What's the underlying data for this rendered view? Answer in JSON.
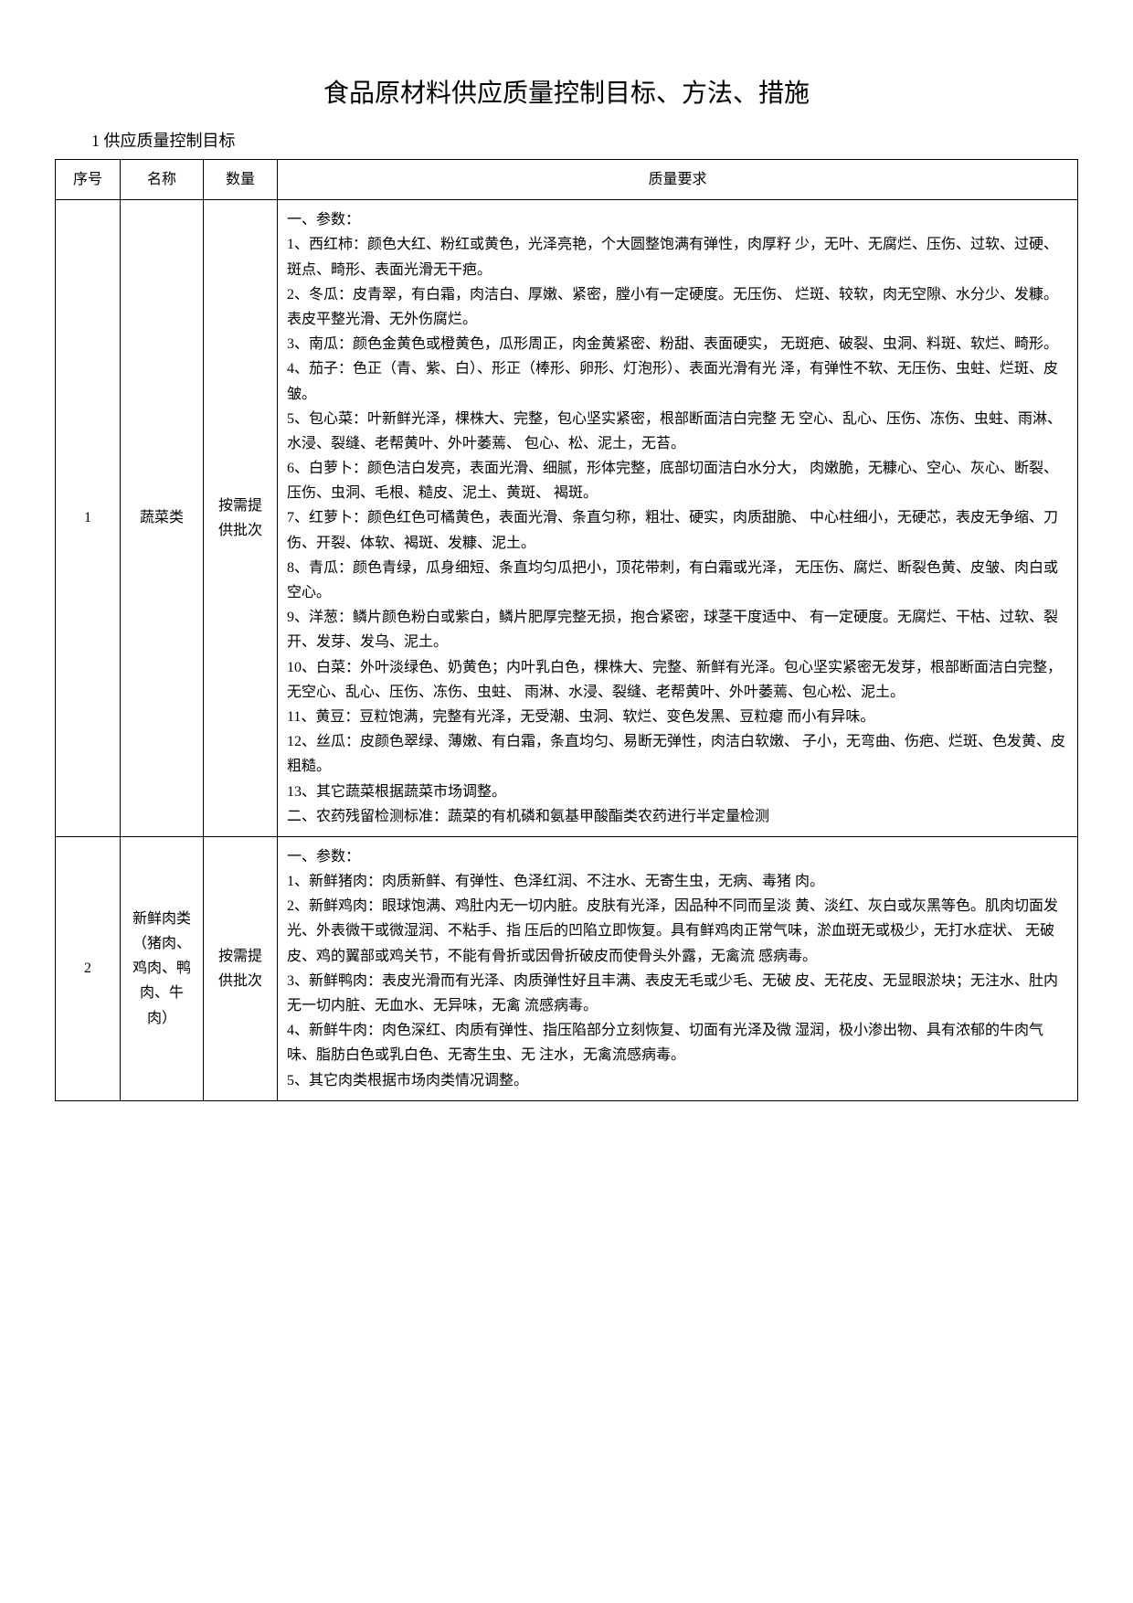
{
  "title": "食品原材料供应质量控制目标、方法、措施",
  "section1_heading": "1 供应质量控制目标",
  "columns": {
    "seq": "序号",
    "name": "名称",
    "qty": "数量",
    "req": "质量要求"
  },
  "rows": [
    {
      "seq": "1",
      "name": "蔬菜类",
      "qty": "按需提供批次",
      "req_lines": [
        "一、参数：",
        "1、西红柿：颜色大红、粉红或黄色，光泽亮艳，个大圆整饱满有弹性，肉厚籽 少，无叶、无腐烂、压伤、过软、过硬、斑点、畸形、表面光滑无干疤。",
        "2、冬瓜：皮青翠，有白霜，肉洁白、厚嫩、紧密，膛小有一定硬度。无压伤、 烂斑、较软，肉无空隙、水分少、发糠。表皮平整光滑、无外伤腐烂。",
        "3、南瓜：颜色金黄色或橙黄色，瓜形周正，肉金黄紧密、粉甜、表面硬实， 无斑疤、破裂、虫洞、料斑、软烂、畸形。",
        "4、茄子：色正（青、紫、白）、形正（棒形、卵形、灯泡形）、表面光滑有光 泽，有弹性不软、无压伤、虫蛀、烂斑、皮皱。",
        "5、包心菜：叶新鲜光泽，棵株大、完整，包心坚实紧密，根部断面洁白完整 无 空心、乱心、压伤、冻伤、虫蛀、雨淋、水浸、裂缝、老帮黄叶、外叶萎蔫、 包心、松、泥土，无苔。",
        "6、白萝卜：颜色洁白发亮，表面光滑、细腻，形体完整，底部切面洁白水分大， 肉嫩脆，无糠心、空心、灰心、断裂、压伤、虫洞、毛根、糙皮、泥土、黄斑、 褐斑。",
        "7、红萝卜：颜色红色可橘黄色，表面光滑、条直匀称，粗壮、硬实，肉质甜脆、 中心柱细小，无硬芯，表皮无争缩、刀伤、开裂、体软、褐斑、发糠、泥土。",
        "8、青瓜：颜色青绿，瓜身细短、条直均匀瓜把小，顶花带刺，有白霜或光泽， 无压伤、腐烂、断裂色黄、皮皱、肉白或空心。",
        "9、洋葱：鳞片颜色粉白或紫白，鳞片肥厚完整无损，抱合紧密，球茎干度适中、 有一定硬度。无腐烂、干枯、过软、裂开、发芽、发乌、泥土。",
        "10、白菜：外叶淡绿色、奶黄色；内叶乳白色，棵株大、完整、新鲜有光泽。包心坚实紧密无发芽，根部断面洁白完整，无空心、乱心、压伤、冻伤、虫蛀、 雨淋、水浸、裂缝、老帮黄叶、外叶萎蔫、包心松、泥土。",
        "11、黄豆：豆粒饱满，完整有光泽，无受潮、虫洞、软烂、变色发黑、豆粒瘪 而小有异味。",
        "12、丝瓜：皮颜色翠绿、薄嫩、有白霜，条直均匀、易断无弹性，肉洁白软嫩、 子小，无弯曲、伤疤、烂斑、色发黄、皮粗糙。",
        "13、其它蔬菜根据蔬菜市场调整。",
        "二、农药残留检测标准：蔬菜的有机磷和氨基甲酸酯类农药进行半定量检测"
      ]
    },
    {
      "seq": "2",
      "name": "新鲜肉类（猪肉、鸡肉、鸭肉、牛肉）",
      "qty": "按需提供批次",
      "req_lines": [
        "一、参数：",
        "1、新鲜猪肉：肉质新鲜、有弹性、色泽红润、不注水、无寄生虫，无病、毒猪 肉。",
        "2、新鲜鸡肉：眼球饱满、鸡肚内无一切内脏。皮肤有光泽，因品种不同而呈淡 黄、淡红、灰白或灰黑等色。肌肉切面发光、外表微干或微湿润、不粘手、指 压后的凹陷立即恢复。具有鲜鸡肉正常气味，淤血斑无或极少，无打水症状、 无破皮、鸡的翼部或鸡关节，不能有骨折或因骨折破皮而使骨头外露，无禽流 感病毒。",
        "3、新鲜鸭肉：表皮光滑而有光泽、肉质弹性好且丰满、表皮无毛或少毛、无破 皮、无花皮、无显眼淤块；无注水、肚内无一切内脏、无血水、无异味，无禽 流感病毒。",
        "4、新鲜牛肉：肉色深红、肉质有弹性、指压陷部分立刻恢复、切面有光泽及微 湿润，极小渗出物、具有浓郁的牛肉气味、脂肪白色或乳白色、无寄生虫、无 注水，无禽流感病毒。",
        "5、其它肉类根据市场肉类情况调整。"
      ]
    }
  ]
}
